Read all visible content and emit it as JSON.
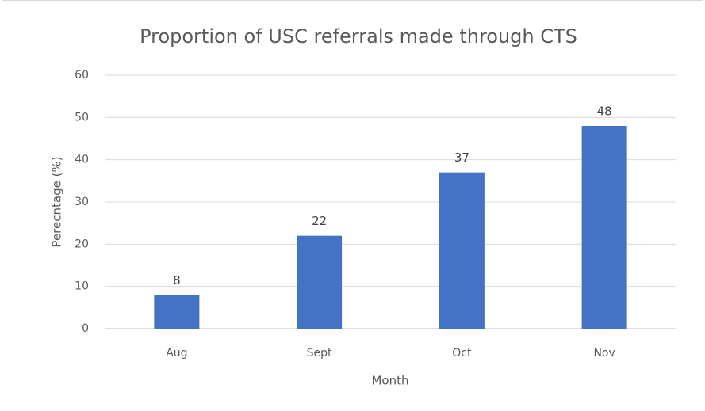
{
  "chart_data": {
    "type": "bar",
    "title": "Proportion of USC referrals made through CTS",
    "x_label": "Month",
    "y_label": "Perecntage (%)",
    "categories": [
      "Aug",
      "Sept",
      "Oct",
      "Nov"
    ],
    "values": [
      8,
      22,
      37,
      48
    ],
    "color": "#4472c4",
    "ylim": [
      0,
      60
    ],
    "yticks": [
      0,
      10,
      20,
      30,
      40,
      50,
      60
    ],
    "grid": true,
    "data_labels": true
  }
}
